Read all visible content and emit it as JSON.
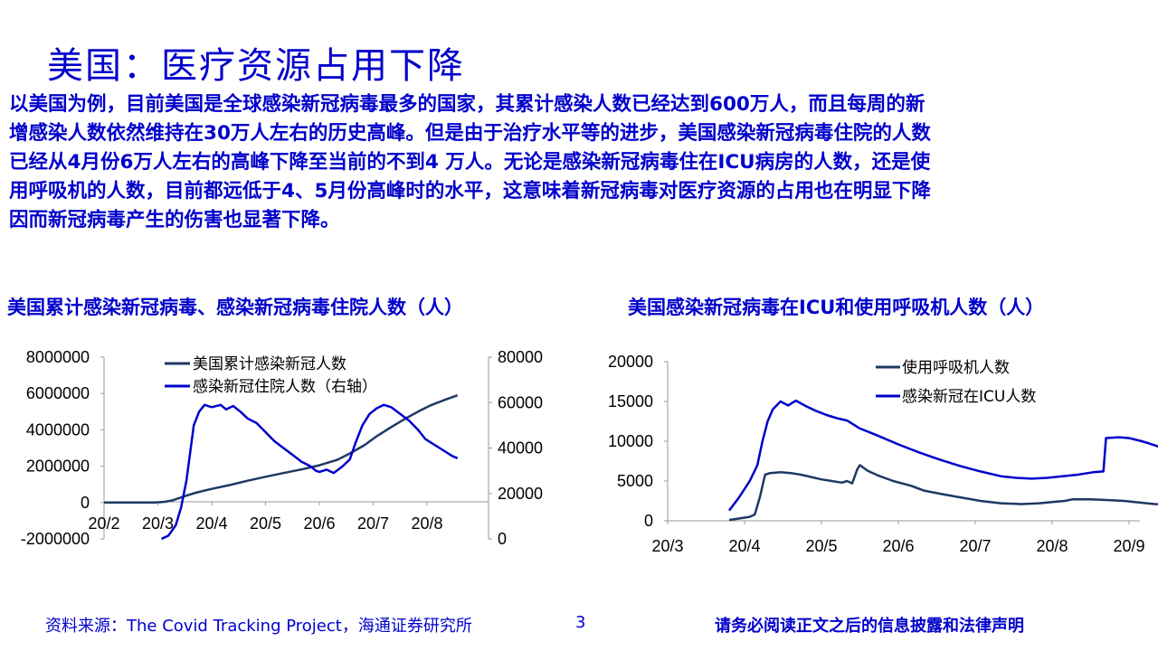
{
  "page": {
    "title": "美国：医疗资源占用下降",
    "body_lines": [
      "以美国为例，目前美国是全球感染新冠病毒最多的国家，其累计感染人数已经达到600万人，而且每周的新",
      "增感染人数依然维持在30万人左右的历史高峰。但是由于治疗水平等的进步，美国感染新冠病毒住院的人数",
      "已经从4月份6万人左右的高峰下降至当前的不到4 万人。无论是感染新冠病毒住在ICU病房的人数，还是使",
      "用呼吸机的人数，目前都远低于4、5月份高峰时的水平，这意味着新冠病毒对医疗资源的占用也在明显下降",
      "因而新冠病毒产生的伤害也显著下降。"
    ],
    "source": "资料来源：The Covid Tracking Project，海通证券研究所",
    "page_number": "3",
    "disclaimer": "请务必阅读正文之后的信息披露和法律声明"
  },
  "chart_data": [
    {
      "type": "line",
      "title": "美国累计感染新冠病毒、感染新冠病毒住院人数（人）",
      "x_ticks": [
        "20/2",
        "20/3",
        "20/4",
        "20/5",
        "20/6",
        "20/7",
        "20/8"
      ],
      "x_domain": [
        "20/2",
        "20/9"
      ],
      "y_left": {
        "range": [
          -2000000,
          8000000
        ],
        "ticks": [
          "8000000",
          "6000000",
          "4000000",
          "2000000",
          "0",
          "-2000000"
        ]
      },
      "y_right": {
        "range": [
          0,
          80000
        ],
        "ticks": [
          "80000",
          "60000",
          "40000",
          "20000",
          "0"
        ]
      },
      "legend_position": "top-left",
      "series": [
        {
          "name": "美国累计感染新冠人数",
          "axis": "left",
          "color": "#1f3864",
          "points": [
            [
              0,
              0
            ],
            [
              10,
              0
            ],
            [
              20,
              0
            ],
            [
              28,
              0
            ],
            [
              34,
              40000
            ],
            [
              38,
              120000
            ],
            [
              42,
              250000
            ],
            [
              47,
              420000
            ],
            [
              52,
              560000
            ],
            [
              60,
              750000
            ],
            [
              70,
              960000
            ],
            [
              80,
              1200000
            ],
            [
              90,
              1420000
            ],
            [
              100,
              1620000
            ],
            [
              110,
              1820000
            ],
            [
              120,
              2050000
            ],
            [
              130,
              2350000
            ],
            [
              137,
              2700000
            ],
            [
              145,
              3150000
            ],
            [
              152,
              3650000
            ],
            [
              160,
              4150000
            ],
            [
              168,
              4620000
            ],
            [
              175,
              5000000
            ],
            [
              182,
              5350000
            ],
            [
              190,
              5650000
            ],
            [
              197,
              5900000
            ]
          ]
        },
        {
          "name": "感染新冠住院人数（右轴）",
          "axis": "right",
          "color": "#0000cc",
          "points": [
            [
              32,
              0
            ],
            [
              36,
              1500
            ],
            [
              40,
              6000
            ],
            [
              43,
              14000
            ],
            [
              46,
              26000
            ],
            [
              48,
              38000
            ],
            [
              50,
              50000
            ],
            [
              53,
              56000
            ],
            [
              56,
              59000
            ],
            [
              60,
              58000
            ],
            [
              65,
              59000
            ],
            [
              68,
              57000
            ],
            [
              72,
              58500
            ],
            [
              76,
              56000
            ],
            [
              80,
              53000
            ],
            [
              85,
              51000
            ],
            [
              90,
              47000
            ],
            [
              95,
              43000
            ],
            [
              100,
              40000
            ],
            [
              105,
              37000
            ],
            [
              110,
              34000
            ],
            [
              115,
              32000
            ],
            [
              118,
              30000
            ],
            [
              120,
              29500
            ],
            [
              124,
              30500
            ],
            [
              128,
              29000
            ],
            [
              133,
              32000
            ],
            [
              137,
              35000
            ],
            [
              140,
              42000
            ],
            [
              144,
              50000
            ],
            [
              148,
              55000
            ],
            [
              152,
              57500
            ],
            [
              156,
              59000
            ],
            [
              160,
              58000
            ],
            [
              165,
              55000
            ],
            [
              170,
              52000
            ],
            [
              175,
              48000
            ],
            [
              179,
              44000
            ],
            [
              183,
              42000
            ],
            [
              187,
              40000
            ],
            [
              191,
              38000
            ],
            [
              194,
              36500
            ],
            [
              197,
              35500
            ]
          ]
        }
      ]
    },
    {
      "type": "line",
      "title": "美国感染新冠病毒在ICU和使用呼吸机人数（人）",
      "x_ticks": [
        "20/3",
        "20/4",
        "20/5",
        "20/6",
        "20/7",
        "20/8",
        "20/9"
      ],
      "x_domain": [
        "20/3",
        "20/9"
      ],
      "y_left": {
        "range": [
          0,
          20000
        ],
        "ticks": [
          "20000",
          "15000",
          "10000",
          "5000",
          "0"
        ]
      },
      "legend_position": "top-right",
      "series": [
        {
          "name": "使用呼吸机人数",
          "color": "#1f3864",
          "points": [
            [
              24,
              100
            ],
            [
              28,
              300
            ],
            [
              32,
              500
            ],
            [
              34,
              800
            ],
            [
              36,
              3000
            ],
            [
              38,
              5800
            ],
            [
              40,
              6000
            ],
            [
              44,
              6100
            ],
            [
              48,
              6000
            ],
            [
              52,
              5800
            ],
            [
              56,
              5500
            ],
            [
              60,
              5200
            ],
            [
              64,
              5000
            ],
            [
              68,
              4800
            ],
            [
              70,
              5000
            ],
            [
              72,
              4700
            ],
            [
              74,
              6500
            ],
            [
              75,
              7000
            ],
            [
              78,
              6300
            ],
            [
              82,
              5700
            ],
            [
              88,
              5000
            ],
            [
              95,
              4400
            ],
            [
              100,
              3800
            ],
            [
              108,
              3300
            ],
            [
              115,
              2900
            ],
            [
              122,
              2500
            ],
            [
              130,
              2200
            ],
            [
              138,
              2100
            ],
            [
              145,
              2200
            ],
            [
              150,
              2350
            ],
            [
              155,
              2500
            ],
            [
              158,
              2700
            ],
            [
              165,
              2700
            ],
            [
              172,
              2600
            ],
            [
              178,
              2500
            ],
            [
              184,
              2300
            ],
            [
              190,
              2100
            ],
            [
              194,
              2050
            ]
          ]
        },
        {
          "name": "感染新冠在ICU人数",
          "color": "#0000cc",
          "points": [
            [
              24,
              1300
            ],
            [
              28,
              3000
            ],
            [
              32,
              5000
            ],
            [
              35,
              7000
            ],
            [
              37,
              10000
            ],
            [
              39,
              12500
            ],
            [
              41,
              14000
            ],
            [
              44,
              15000
            ],
            [
              47,
              14500
            ],
            [
              50,
              15100
            ],
            [
              54,
              14400
            ],
            [
              58,
              13800
            ],
            [
              62,
              13300
            ],
            [
              66,
              12900
            ],
            [
              70,
              12600
            ],
            [
              75,
              11600
            ],
            [
              82,
              10700
            ],
            [
              90,
              9600
            ],
            [
              98,
              8600
            ],
            [
              106,
              7700
            ],
            [
              114,
              6900
            ],
            [
              122,
              6200
            ],
            [
              130,
              5600
            ],
            [
              136,
              5400
            ],
            [
              142,
              5300
            ],
            [
              148,
              5400
            ],
            [
              154,
              5600
            ],
            [
              160,
              5800
            ],
            [
              166,
              6100
            ],
            [
              170,
              6200
            ],
            [
              171,
              10400
            ],
            [
              176,
              10500
            ],
            [
              180,
              10400
            ],
            [
              185,
              10000
            ],
            [
              190,
              9500
            ],
            [
              196,
              8800
            ],
            [
              202,
              8300
            ],
            [
              208,
              7600
            ],
            [
              212,
              7200
            ]
          ]
        }
      ]
    }
  ]
}
